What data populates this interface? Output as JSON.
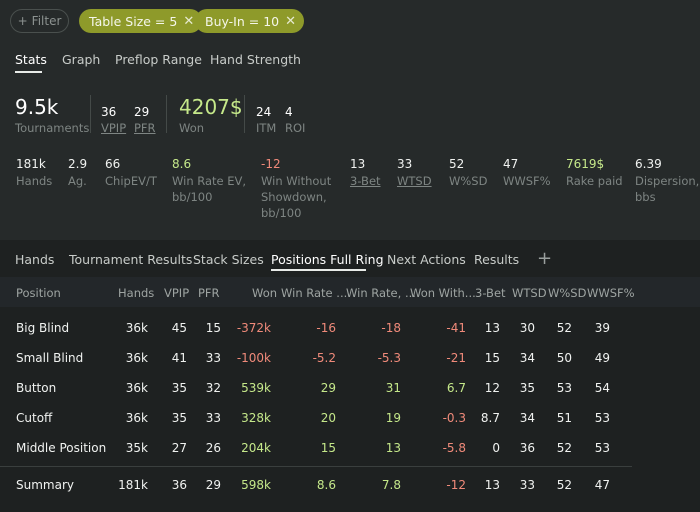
{
  "filters": {
    "filter_label": "Filter",
    "chips": [
      {
        "label": "Table Size = 5"
      },
      {
        "label": "Buy-In = 10"
      }
    ]
  },
  "tabs": [
    "Stats",
    "Graph",
    "Preflop Range",
    "Hand Strength"
  ],
  "summary": {
    "tournaments": {
      "value": "9.5k",
      "label": "Tournaments"
    },
    "vpip": {
      "value": "36",
      "label": "VPIP"
    },
    "pfr": {
      "value": "29",
      "label": "PFR"
    },
    "won": {
      "value": "4207$",
      "label": "Won"
    },
    "itm": {
      "value": "24",
      "label": "ITM"
    },
    "roi": {
      "value": "4",
      "label": "ROI"
    }
  },
  "stats": [
    {
      "value": "181k",
      "label": "Hands"
    },
    {
      "value": "2.9",
      "label": "Ag."
    },
    {
      "value": "66",
      "label": "ChipEV/T"
    },
    {
      "value": "8.6",
      "label": "Win Rate EV, bb/100"
    },
    {
      "value": "-12",
      "label": "Win Without Showdown, bb/100"
    },
    {
      "value": "13",
      "label": "3-Bet"
    },
    {
      "value": "33",
      "label": "WTSD"
    },
    {
      "value": "52",
      "label": "W%SD"
    },
    {
      "value": "47",
      "label": "WWSF%"
    },
    {
      "value": "7619$",
      "label": "Rake paid"
    },
    {
      "value": "6.39",
      "label": "Dispersion, bbs"
    }
  ],
  "bottom_tabs": [
    "Hands",
    "Tournament Results",
    "Stack Sizes",
    "Positions Full Ring",
    "Next Actions",
    "Results"
  ],
  "table": {
    "columns": [
      "Position",
      "Hands",
      "VPIP",
      "PFR",
      "Won",
      "Win Rate ...",
      "Win Rate, ...",
      "Won With...",
      "3-Bet",
      "WTSD",
      "W%SD",
      "WWSF%"
    ],
    "rows": [
      [
        "Big Blind",
        "36k",
        "45",
        "15",
        "-372k",
        "-16",
        "-18",
        "-41",
        "13",
        "30",
        "52",
        "39"
      ],
      [
        "Small Blind",
        "36k",
        "41",
        "33",
        "-100k",
        "-5.2",
        "-5.3",
        "-21",
        "15",
        "34",
        "50",
        "49"
      ],
      [
        "Button",
        "36k",
        "35",
        "32",
        "539k",
        "29",
        "31",
        "6.7",
        "12",
        "35",
        "53",
        "54"
      ],
      [
        "Cutoff",
        "36k",
        "35",
        "33",
        "328k",
        "20",
        "19",
        "-0.3",
        "8.7",
        "34",
        "51",
        "53"
      ],
      [
        "Middle Position",
        "35k",
        "27",
        "26",
        "204k",
        "15",
        "13",
        "-5.8",
        "0",
        "36",
        "52",
        "53"
      ]
    ],
    "summary_row": [
      "Summary",
      "181k",
      "36",
      "29",
      "598k",
      "8.6",
      "7.8",
      "-12",
      "13",
      "33",
      "52",
      "47"
    ]
  },
  "colors": {
    "positive": "#c5e88a",
    "negative": "#f08a7a",
    "chip": "#8e9a2a"
  }
}
